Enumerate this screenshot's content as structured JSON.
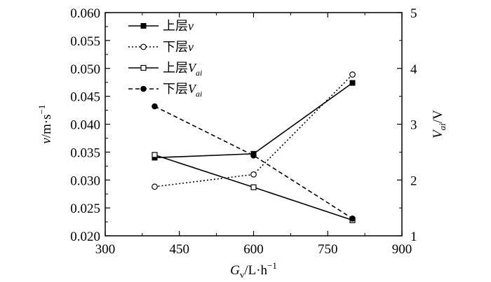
{
  "chart_data": {
    "type": "line",
    "x": [
      400,
      600,
      800
    ],
    "xlabel": {
      "main": "G",
      "sub": "v",
      "rest": "/L·h",
      "sup": "−1"
    },
    "ylabel_left": {
      "main": "v",
      "rest": "/m·s",
      "sup": "−1"
    },
    "ylabel_right": {
      "main": "V",
      "sub": "ai",
      "rest": "/V"
    },
    "xlim": [
      300,
      900
    ],
    "ylim_left": [
      0.02,
      0.06
    ],
    "ylim_right": [
      1,
      5
    ],
    "xticks": [
      "300",
      "450",
      "600",
      "750",
      "900"
    ],
    "yticks_left": [
      "0.020",
      "0.025",
      "0.030",
      "0.035",
      "0.040",
      "0.045",
      "0.050",
      "0.055",
      "0.060"
    ],
    "yticks_right": [
      "1",
      "2",
      "3",
      "4",
      "5"
    ],
    "legend_position": "top-left",
    "series": [
      {
        "name": "上层",
        "italic": "v",
        "sub": "",
        "axis": "left",
        "line": "solid",
        "marker": "filled-square",
        "values": [
          0.034,
          0.0347,
          0.0474
        ]
      },
      {
        "name": "下层",
        "italic": "v",
        "sub": "",
        "axis": "left",
        "line": "dotted",
        "marker": "open-circle",
        "values": [
          0.0288,
          0.031,
          0.0489
        ]
      },
      {
        "name": "上层",
        "italic": "V",
        "sub": "ai",
        "axis": "right",
        "line": "solid",
        "marker": "open-square",
        "values": [
          2.45,
          1.87,
          1.28
        ]
      },
      {
        "name": "下层",
        "italic": "V",
        "sub": "ai",
        "axis": "right",
        "line": "dashed",
        "marker": "filled-circle",
        "values": [
          3.32,
          2.44,
          1.31
        ]
      }
    ]
  }
}
